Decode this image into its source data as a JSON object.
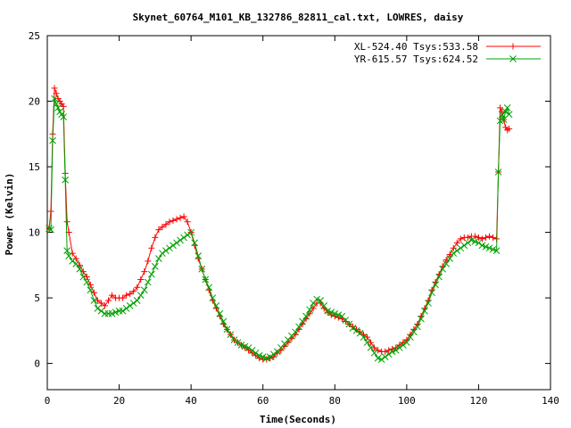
{
  "chart_data": {
    "type": "line",
    "title": "Skynet_60764_M101_KB_132786_82811_cal.txt, LOWRES, daisy",
    "xlabel": "Time(Seconds)",
    "ylabel": "Power (Kelvin)",
    "xlim": [
      0,
      140
    ],
    "ylim": [
      -2,
      25
    ],
    "xticks": [
      0,
      20,
      40,
      60,
      80,
      100,
      120,
      140
    ],
    "yticks": [
      0,
      5,
      10,
      15,
      20,
      25
    ],
    "xtick_labels": [
      "0",
      "20",
      "40",
      "60",
      "80",
      "100",
      "120",
      "140"
    ],
    "ytick_labels": [
      "0",
      "5",
      "10",
      "15",
      "20",
      "25"
    ],
    "grid": false,
    "legend_position": "top-right",
    "series": [
      {
        "name": "XL-524.40 Tsys:533.58",
        "color": "#ff0000",
        "marker": "plus",
        "x": [
          0.5,
          1,
          1.5,
          2,
          2.5,
          3,
          3.5,
          4,
          4.5,
          5,
          5.5,
          6,
          7,
          8,
          9,
          10,
          11,
          12,
          13,
          14,
          15,
          16,
          17,
          18,
          19,
          20,
          21,
          22,
          23,
          24,
          25,
          26,
          27,
          28,
          29,
          30,
          31,
          32,
          33,
          34,
          35,
          36,
          37,
          38,
          39,
          40,
          41,
          42,
          43,
          44,
          45,
          46,
          47,
          48,
          49,
          50,
          51,
          52,
          53,
          54,
          55,
          56,
          57,
          58,
          59,
          60,
          61,
          62,
          63,
          64,
          65,
          66,
          67,
          68,
          69,
          70,
          71,
          72,
          73,
          74,
          75,
          76,
          77,
          78,
          79,
          80,
          81,
          82,
          83,
          84,
          85,
          86,
          87,
          88,
          89,
          90,
          91,
          92,
          93,
          94,
          95,
          96,
          97,
          98,
          99,
          100,
          101,
          102,
          103,
          104,
          105,
          106,
          107,
          108,
          109,
          110,
          111,
          112,
          113,
          114,
          115,
          116,
          117,
          118,
          119,
          120,
          121,
          122,
          123,
          124,
          125,
          125.5,
          126,
          126.5,
          127,
          127.5,
          128,
          128.5
        ],
        "y": [
          10.3,
          11.6,
          17.5,
          21.0,
          20.6,
          20.2,
          20.0,
          19.8,
          19.6,
          14.5,
          10.8,
          10.0,
          8.4,
          8.0,
          7.5,
          7.0,
          6.6,
          6.0,
          5.4,
          4.8,
          4.6,
          4.4,
          4.8,
          5.2,
          5.0,
          5.0,
          5.0,
          5.2,
          5.3,
          5.5,
          5.8,
          6.4,
          7.0,
          7.8,
          8.8,
          9.6,
          10.2,
          10.4,
          10.6,
          10.8,
          10.9,
          11.0,
          11.1,
          11.2,
          10.8,
          10.0,
          9.0,
          8.0,
          7.2,
          6.4,
          5.6,
          4.8,
          4.2,
          3.6,
          3.0,
          2.6,
          2.2,
          1.8,
          1.6,
          1.4,
          1.2,
          1.0,
          0.8,
          0.6,
          0.4,
          0.3,
          0.3,
          0.4,
          0.5,
          0.8,
          1.0,
          1.3,
          1.6,
          1.9,
          2.2,
          2.6,
          3.0,
          3.4,
          3.8,
          4.2,
          4.6,
          4.6,
          4.2,
          3.9,
          3.7,
          3.6,
          3.5,
          3.4,
          3.2,
          3.0,
          2.8,
          2.6,
          2.4,
          2.2,
          2.0,
          1.6,
          1.2,
          1.0,
          0.9,
          0.9,
          1.0,
          1.1,
          1.2,
          1.4,
          1.6,
          1.8,
          2.2,
          2.6,
          3.0,
          3.6,
          4.2,
          4.8,
          5.6,
          6.2,
          6.8,
          7.4,
          7.9,
          8.3,
          8.8,
          9.2,
          9.5,
          9.6,
          9.6,
          9.7,
          9.7,
          9.6,
          9.5,
          9.6,
          9.7,
          9.6,
          9.5,
          14.6,
          19.5,
          19.2,
          18.6,
          18.0,
          17.8,
          17.9
        ]
      },
      {
        "name": "YR-615.57 Tsys:624.52",
        "color": "#00a000",
        "marker": "cross",
        "x": [
          0.5,
          1,
          1.5,
          2,
          2.5,
          3,
          3.5,
          4,
          4.5,
          5,
          5.5,
          6,
          7,
          8,
          9,
          10,
          11,
          12,
          13,
          14,
          15,
          16,
          17,
          18,
          19,
          20,
          21,
          22,
          23,
          24,
          25,
          26,
          27,
          28,
          29,
          30,
          31,
          32,
          33,
          34,
          35,
          36,
          37,
          38,
          39,
          40,
          41,
          42,
          43,
          44,
          45,
          46,
          47,
          48,
          49,
          50,
          51,
          52,
          53,
          54,
          55,
          56,
          57,
          58,
          59,
          60,
          61,
          62,
          63,
          64,
          65,
          66,
          67,
          68,
          69,
          70,
          71,
          72,
          73,
          74,
          75,
          76,
          77,
          78,
          79,
          80,
          81,
          82,
          83,
          84,
          85,
          86,
          87,
          88,
          89,
          90,
          91,
          92,
          93,
          94,
          95,
          96,
          97,
          98,
          99,
          100,
          101,
          102,
          103,
          104,
          105,
          106,
          107,
          108,
          109,
          110,
          111,
          112,
          113,
          114,
          115,
          116,
          117,
          118,
          119,
          120,
          121,
          122,
          123,
          124,
          125,
          125.5,
          126,
          126.5,
          127,
          127.5,
          128,
          128.5
        ],
        "y": [
          10.3,
          10.2,
          17.0,
          20.2,
          19.8,
          19.5,
          19.2,
          19.0,
          18.8,
          14.0,
          8.6,
          8.2,
          7.8,
          7.6,
          7.2,
          6.6,
          6.2,
          5.6,
          4.8,
          4.2,
          4.0,
          3.8,
          3.8,
          3.8,
          3.9,
          4.0,
          4.0,
          4.2,
          4.4,
          4.6,
          4.8,
          5.2,
          5.6,
          6.2,
          6.8,
          7.4,
          8.0,
          8.4,
          8.6,
          8.8,
          9.0,
          9.2,
          9.4,
          9.6,
          9.8,
          10.0,
          9.2,
          8.2,
          7.2,
          6.4,
          5.8,
          5.0,
          4.4,
          3.8,
          3.2,
          2.6,
          2.2,
          1.8,
          1.6,
          1.4,
          1.3,
          1.2,
          1.0,
          0.8,
          0.6,
          0.5,
          0.4,
          0.5,
          0.7,
          0.9,
          1.2,
          1.5,
          1.8,
          2.1,
          2.4,
          2.8,
          3.2,
          3.6,
          4.1,
          4.6,
          4.9,
          4.8,
          4.4,
          4.0,
          3.9,
          3.8,
          3.7,
          3.6,
          3.3,
          3.0,
          2.7,
          2.5,
          2.3,
          2.0,
          1.6,
          1.2,
          0.8,
          0.4,
          0.3,
          0.5,
          0.7,
          0.9,
          1.0,
          1.2,
          1.4,
          1.6,
          2.0,
          2.4,
          2.8,
          3.4,
          4.0,
          4.6,
          5.4,
          6.0,
          6.6,
          7.2,
          7.6,
          8.0,
          8.4,
          8.6,
          8.8,
          9.0,
          9.2,
          9.4,
          9.3,
          9.2,
          9.0,
          8.9,
          8.8,
          8.7,
          8.6,
          14.6,
          18.5,
          19.0,
          18.6,
          19.2,
          19.5,
          19.0
        ]
      }
    ]
  }
}
